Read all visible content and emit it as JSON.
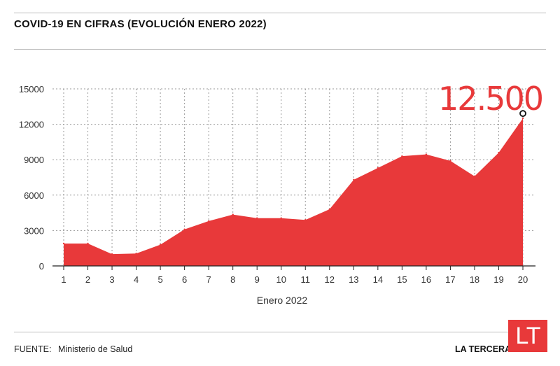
{
  "title": "COVID-19 EN CIFRAS (EVOLUCIÓN ENERO 2022)",
  "source_label": "FUENTE:",
  "source_value": "Ministerio de Salud",
  "publisher": "LA TERCERA",
  "logo_text": "LT",
  "colors": {
    "fill": "#e8393a",
    "callout": "#e8393a"
  },
  "chart_data": {
    "type": "area",
    "title": "COVID-19 EN CIFRAS (EVOLUCIÓN ENERO 2022)",
    "xlabel": "Enero 2022",
    "ylabel": "",
    "x": [
      1,
      2,
      3,
      4,
      5,
      6,
      7,
      8,
      9,
      10,
      11,
      12,
      13,
      14,
      15,
      16,
      17,
      18,
      19,
      20
    ],
    "values": [
      1900,
      1900,
      1000,
      1050,
      1800,
      3100,
      3800,
      4350,
      4050,
      4050,
      3900,
      4800,
      7300,
      8300,
      9300,
      9450,
      8900,
      7600,
      9600,
      12500
    ],
    "ylim": [
      0,
      15000
    ],
    "yticks": [
      0,
      3000,
      6000,
      9000,
      12000,
      15000
    ],
    "grid": true,
    "annotation": {
      "x": 20,
      "y": 12500,
      "text": "12.500"
    }
  }
}
